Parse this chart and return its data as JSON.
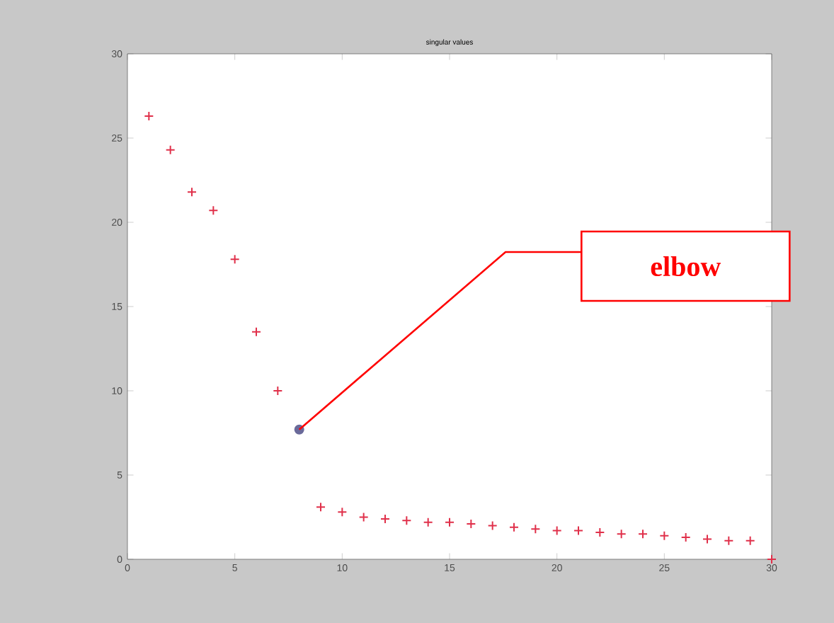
{
  "chart_data": {
    "type": "scatter",
    "title": "singular values",
    "x": [
      1,
      2,
      3,
      4,
      5,
      6,
      7,
      8,
      9,
      10,
      11,
      12,
      13,
      14,
      15,
      16,
      17,
      18,
      19,
      20,
      21,
      22,
      23,
      24,
      25,
      26,
      27,
      28,
      29,
      30
    ],
    "series": [
      {
        "color": "#e0304a",
        "marker": "cross",
        "values": [
          26.3,
          24.3,
          21.8,
          20.7,
          17.8,
          13.5,
          10,
          null,
          3.1,
          2.8,
          2.5,
          2.4,
          2.3,
          2.2,
          2.2,
          2.1,
          2,
          1.9,
          1.8,
          1.7,
          1.7,
          1.6,
          1.5,
          1.5,
          1.4,
          1.3,
          1.2,
          1.1,
          1.1,
          0
        ]
      },
      {
        "color": "#6a6a9a",
        "marker": "circle",
        "x": [
          8
        ],
        "values": [
          7.7
        ]
      }
    ],
    "xlim": [
      0,
      30
    ],
    "ylim": [
      0,
      30
    ],
    "xticks": [
      0,
      5,
      10,
      15,
      20,
      25,
      30
    ],
    "yticks": [
      0,
      5,
      10,
      15,
      20,
      25,
      30
    ],
    "annotations": [
      {
        "text": "elbow",
        "x": 8,
        "y": 7.7
      }
    ]
  }
}
